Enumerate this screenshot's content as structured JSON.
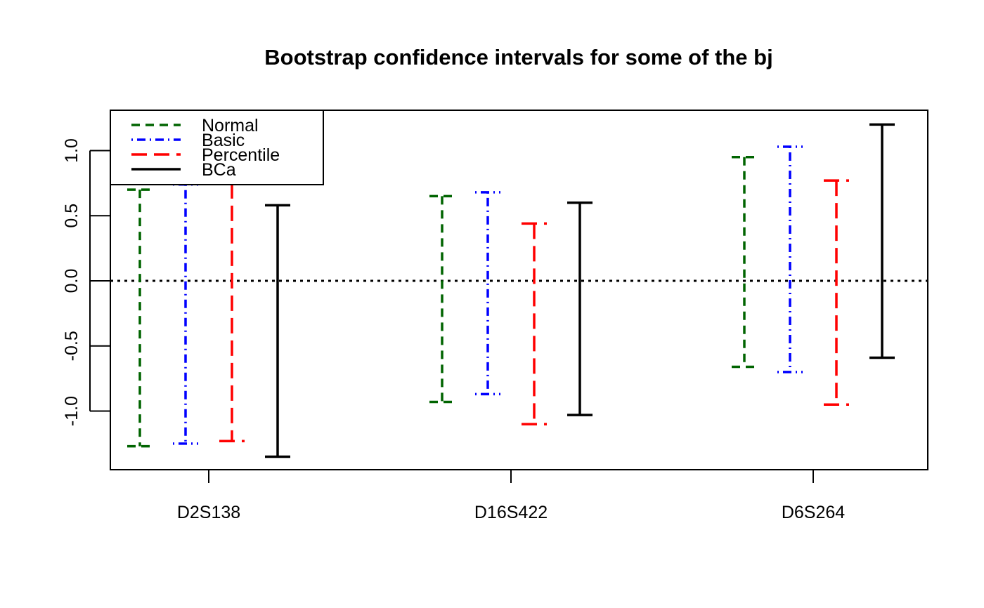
{
  "chart_data": {
    "type": "errorbar",
    "title": "Bootstrap confidence intervals for some of the bj",
    "xlabel": "",
    "ylabel": "",
    "categories": [
      "D2S138",
      "D16S422",
      "D6S264"
    ],
    "yticks": [
      "-1.0",
      "-0.5",
      "0.0",
      "0.5",
      "1.0"
    ],
    "ylim": [
      -1.45,
      1.31
    ],
    "reference_line": {
      "y": 0.0,
      "style": "dotted",
      "color": "#000000"
    },
    "legend_position": "top-left",
    "grid": false,
    "series": [
      {
        "name": "Normal",
        "color": "#006400",
        "line_style": "dashed",
        "intervals": [
          {
            "category": "D2S138",
            "lower": -1.27,
            "upper": 0.7
          },
          {
            "category": "D16S422",
            "lower": -0.93,
            "upper": 0.65
          },
          {
            "category": "D6S264",
            "lower": -0.66,
            "upper": 0.95
          }
        ]
      },
      {
        "name": "Basic",
        "color": "#0000ff",
        "line_style": "dotdash",
        "intervals": [
          {
            "category": "D2S138",
            "lower": -1.25,
            "upper": 0.74
          },
          {
            "category": "D16S422",
            "lower": -0.87,
            "upper": 0.68
          },
          {
            "category": "D6S264",
            "lower": -0.7,
            "upper": 1.03
          }
        ]
      },
      {
        "name": "Percentile",
        "color": "#ff0000",
        "line_style": "longdash",
        "intervals": [
          {
            "category": "D2S138",
            "lower": -1.23,
            "upper": 0.75
          },
          {
            "category": "D16S422",
            "lower": -1.1,
            "upper": 0.44
          },
          {
            "category": "D6S264",
            "lower": -0.95,
            "upper": 0.77
          }
        ]
      },
      {
        "name": "BCa",
        "color": "#000000",
        "line_style": "solid",
        "intervals": [
          {
            "category": "D2S138",
            "lower": -1.35,
            "upper": 0.58
          },
          {
            "category": "D16S422",
            "lower": -1.03,
            "upper": 0.6
          },
          {
            "category": "D6S264",
            "lower": -0.59,
            "upper": 1.2
          }
        ]
      }
    ]
  }
}
